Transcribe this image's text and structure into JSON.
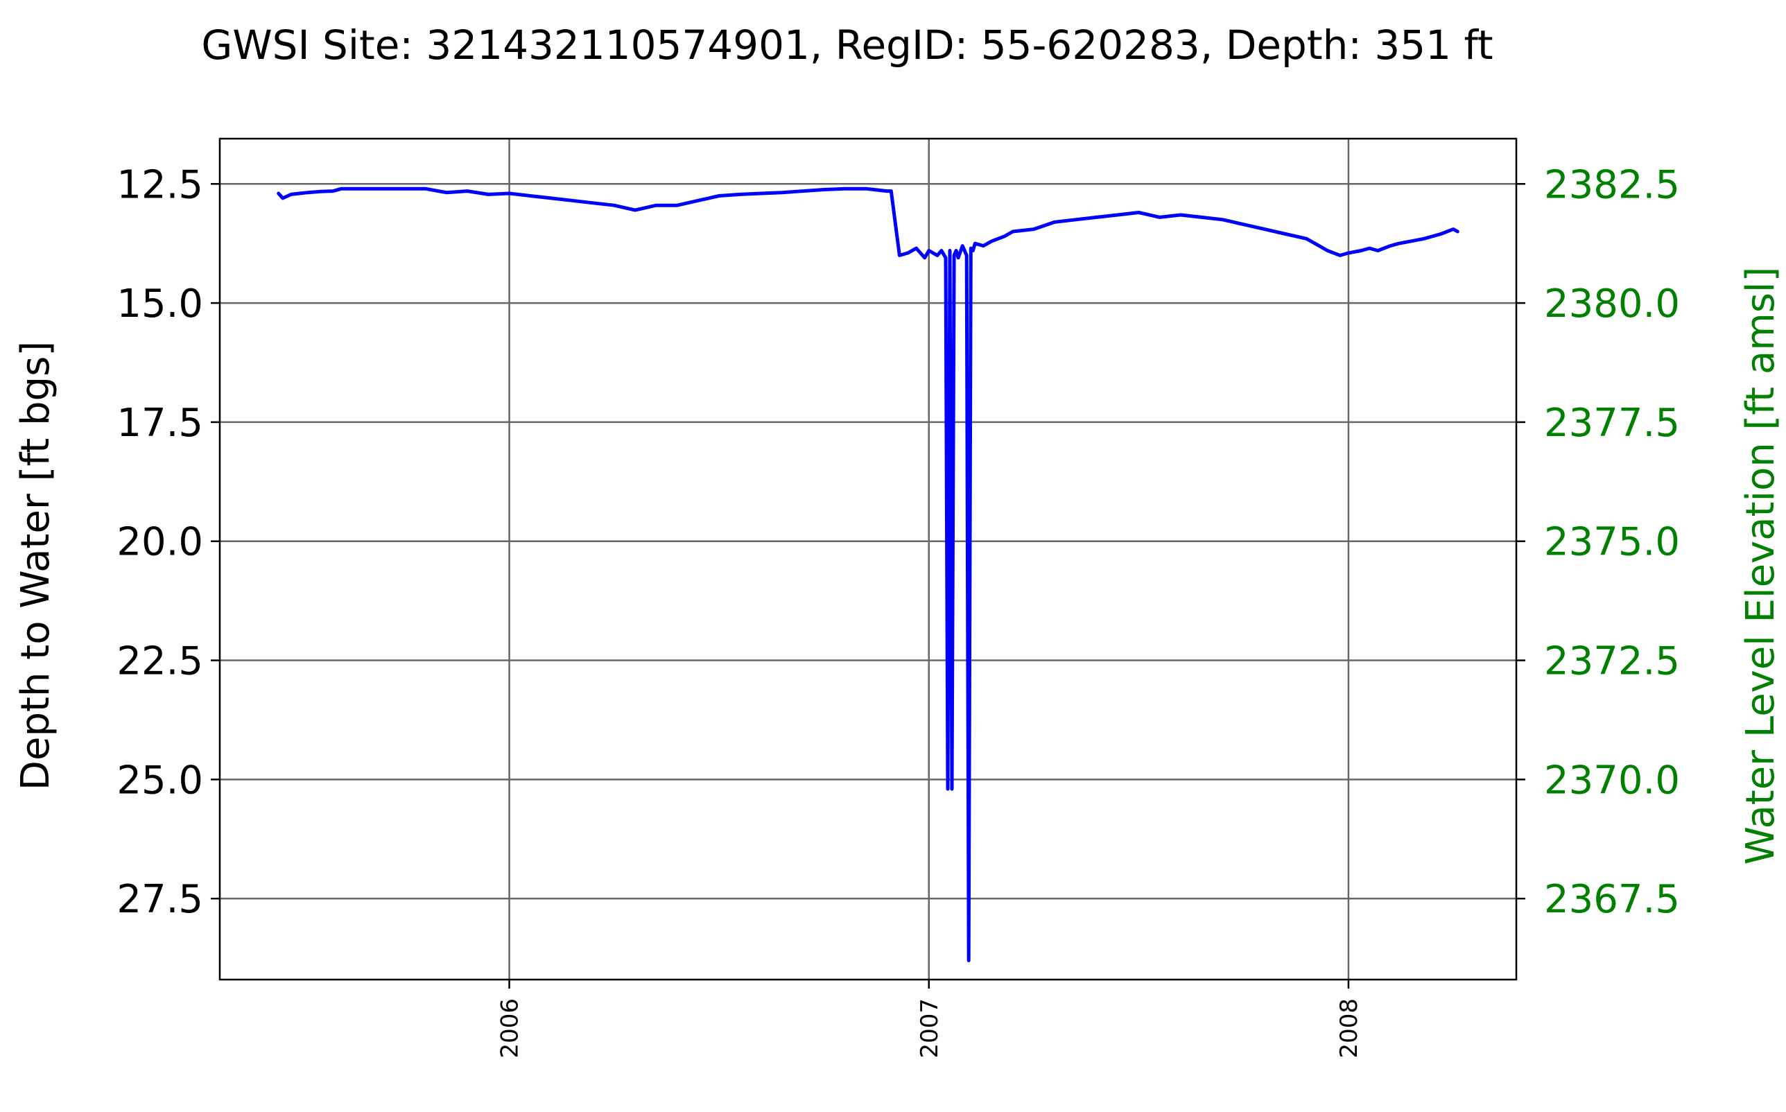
{
  "chart_data": {
    "type": "line",
    "title": "GWSI Site: 321432110574901, RegID: 55-620283, Depth: 351 ft",
    "xlabel": "",
    "ylabel": "Depth to Water [ft bgs]",
    "ylabel_right": "Water Level Elevation [ft amsl]",
    "xlim": [
      2005.31,
      2008.4
    ],
    "ylim": [
      29.2,
      11.55
    ],
    "ylim_right": [
      2365.8,
      2383.45
    ],
    "y_inverted": true,
    "grid": true,
    "x_ticks": [
      2006,
      2007,
      2008
    ],
    "x_tick_labels": [
      "2006",
      "2007",
      "2008"
    ],
    "y_ticks": [
      12.5,
      15.0,
      17.5,
      20.0,
      22.5,
      25.0,
      27.5
    ],
    "y_tick_labels": [
      "12.5",
      "15.0",
      "17.5",
      "20.0",
      "22.5",
      "25.0",
      "27.5"
    ],
    "y_right_ticks": [
      2382.5,
      2380.0,
      2377.5,
      2375.0,
      2372.5,
      2370.0,
      2367.5
    ],
    "y_right_tick_labels": [
      "2382.5",
      "2380.0",
      "2377.5",
      "2375.0",
      "2372.5",
      "2370.0",
      "2367.5"
    ],
    "colors": {
      "line": "#0000ff",
      "right_axis": "#008000",
      "grid": "#666666",
      "axes": "#000000"
    },
    "series": [
      {
        "x": [
          2005.45,
          2005.46,
          2005.48,
          2005.5,
          2005.52,
          2005.55,
          2005.58,
          2005.6,
          2005.62,
          2005.65,
          2005.68,
          2005.7,
          2005.72,
          2005.75,
          2005.8,
          2005.85,
          2005.9,
          2005.95,
          2006.0,
          2006.05,
          2006.1,
          2006.15,
          2006.2,
          2006.25,
          2006.3,
          2006.35,
          2006.4,
          2006.45,
          2006.5,
          2006.55,
          2006.6,
          2006.65,
          2006.7,
          2006.75,
          2006.8,
          2006.85,
          2006.9,
          2006.91,
          2006.93,
          2006.95,
          2006.97,
          2006.99,
          2007.0,
          2007.02,
          2007.03,
          2007.04,
          2007.045,
          2007.05,
          2007.055,
          2007.06,
          2007.065,
          2007.07,
          2007.08,
          2007.09,
          2007.095,
          2007.1,
          2007.105,
          2007.11,
          2007.13,
          2007.15,
          2007.18,
          2007.2,
          2007.25,
          2007.3,
          2007.35,
          2007.4,
          2007.45,
          2007.5,
          2007.55,
          2007.6,
          2007.65,
          2007.7,
          2007.75,
          2007.8,
          2007.85,
          2007.9,
          2007.93,
          2007.95,
          2007.98,
          2008.0,
          2008.03,
          2008.05,
          2008.07,
          2008.1,
          2008.12,
          2008.15,
          2008.18,
          2008.2,
          2008.22,
          2008.25,
          2008.26
        ],
        "y": [
          12.7,
          12.8,
          12.72,
          12.7,
          12.68,
          12.66,
          12.65,
          12.6,
          12.6,
          12.6,
          12.6,
          12.6,
          12.6,
          12.6,
          12.6,
          12.68,
          12.65,
          12.72,
          12.7,
          12.75,
          12.8,
          12.85,
          12.9,
          12.95,
          13.05,
          12.95,
          12.95,
          12.85,
          12.75,
          12.72,
          12.7,
          12.68,
          12.65,
          12.62,
          12.6,
          12.6,
          12.65,
          12.65,
          14.0,
          13.95,
          13.85,
          14.05,
          13.9,
          14.0,
          13.9,
          14.05,
          25.2,
          13.9,
          25.2,
          14.0,
          13.9,
          14.05,
          13.8,
          14.0,
          28.8,
          13.85,
          13.9,
          13.75,
          13.8,
          13.7,
          13.6,
          13.5,
          13.45,
          13.3,
          13.25,
          13.2,
          13.15,
          13.1,
          13.2,
          13.15,
          13.2,
          13.25,
          13.35,
          13.45,
          13.55,
          13.65,
          13.8,
          13.9,
          14.0,
          13.95,
          13.9,
          13.85,
          13.9,
          13.8,
          13.75,
          13.7,
          13.65,
          13.6,
          13.55,
          13.45,
          13.5
        ]
      }
    ]
  }
}
